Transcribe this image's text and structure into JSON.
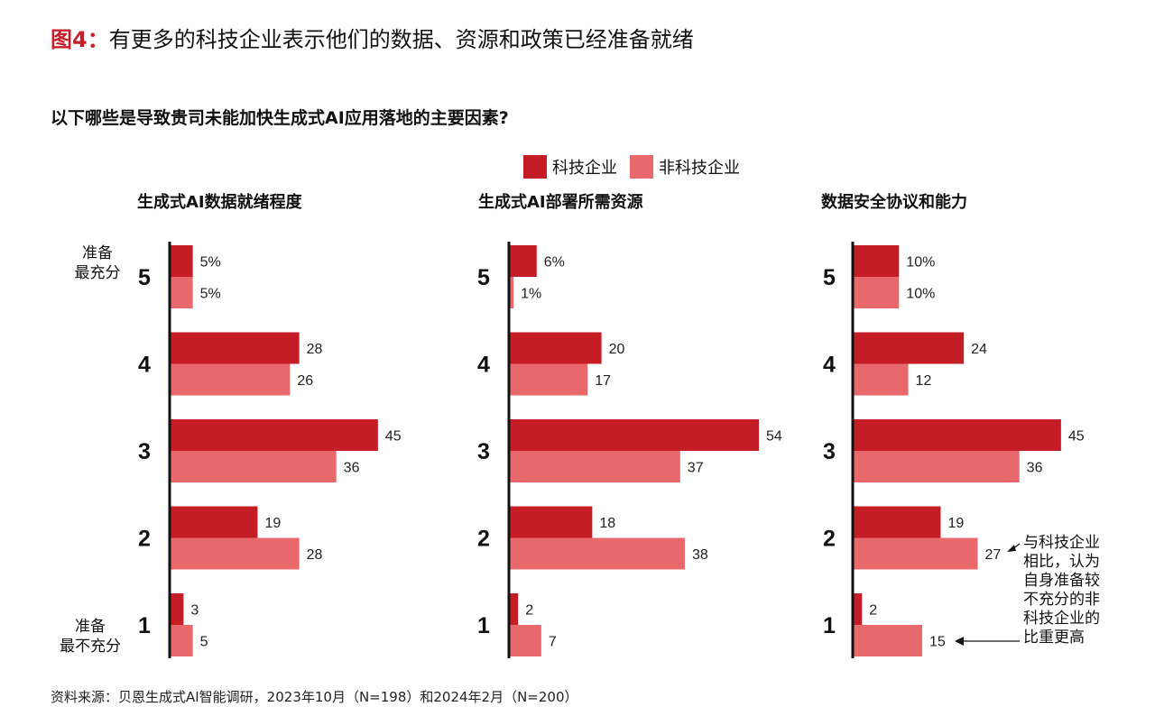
{
  "figure": {
    "prefix": "图4：",
    "title": "有更多的科技企业表示他们的数据、资源和政策已经准备就绪"
  },
  "question": "以下哪些是导致贵司未能加快生成式AI应用落地的主要因素?",
  "legend": {
    "tech": "科技企业",
    "nontech": "非科技企业"
  },
  "colors": {
    "tech": "#c41d26",
    "nontech": "#e9686b"
  },
  "scale_labels": {
    "top_line1": "准备",
    "top_line2": "最充分",
    "bottom_line1": "准备",
    "bottom_line2": "最不充分"
  },
  "annotation": {
    "lines": [
      "与科技企业",
      "相比，认为",
      "自身准备较",
      "不充分的非",
      "科技企业的",
      "比重更高"
    ]
  },
  "source": "资料来源：贝恩生成式AI智能调研，2023年10月（N=198）和2024年2月（N=200）",
  "chart_data": [
    {
      "type": "bar",
      "orientation": "horizontal",
      "title": "生成式AI数据就绪程度",
      "categories": [
        "5",
        "4",
        "3",
        "2",
        "1"
      ],
      "series": [
        {
          "name": "科技企业",
          "values": [
            5,
            28,
            45,
            19,
            3
          ],
          "labels": [
            "5%",
            "28",
            "45",
            "19",
            "3"
          ]
        },
        {
          "name": "非科技企业",
          "values": [
            5,
            26,
            36,
            28,
            5
          ],
          "labels": [
            "5%",
            "26",
            "36",
            "28",
            "5"
          ]
        }
      ]
    },
    {
      "type": "bar",
      "orientation": "horizontal",
      "title": "生成式AI部署所需资源",
      "categories": [
        "5",
        "4",
        "3",
        "2",
        "1"
      ],
      "series": [
        {
          "name": "科技企业",
          "values": [
            6,
            20,
            54,
            18,
            2
          ],
          "labels": [
            "6%",
            "20",
            "54",
            "18",
            "2"
          ]
        },
        {
          "name": "非科技企业",
          "values": [
            1,
            17,
            37,
            38,
            7
          ],
          "labels": [
            "1%",
            "17",
            "37",
            "38",
            "7"
          ]
        }
      ]
    },
    {
      "type": "bar",
      "orientation": "horizontal",
      "title": "数据安全协议和能力",
      "categories": [
        "5",
        "4",
        "3",
        "2",
        "1"
      ],
      "series": [
        {
          "name": "科技企业",
          "values": [
            10,
            24,
            45,
            19,
            2
          ],
          "labels": [
            "10%",
            "24",
            "45",
            "19",
            "2"
          ]
        },
        {
          "name": "非科技企业",
          "values": [
            10,
            12,
            36,
            27,
            15
          ],
          "labels": [
            "10%",
            "12",
            "36",
            "27",
            "15"
          ]
        }
      ]
    }
  ]
}
